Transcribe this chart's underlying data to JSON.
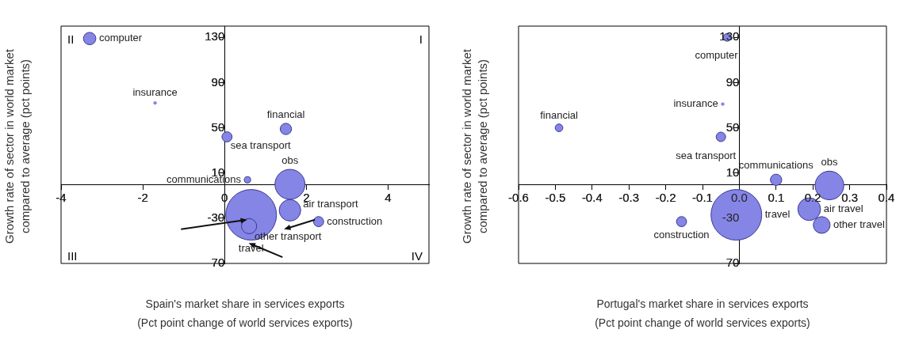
{
  "chart_data": [
    {
      "type": "bubble",
      "xlabel": "Spain's market share in services exports (Pct point change of world services exports)",
      "ylabel": "Growth rate of sector in world market compared to average (pct points)",
      "xlim": [
        -4,
        5
      ],
      "xticks": [
        -4,
        -2,
        0,
        2,
        4
      ],
      "ylim": [
        -70,
        140
      ],
      "yticks": [
        130,
        90,
        50,
        10,
        -30,
        {
          "value": -70,
          "label": "70"
        }
      ],
      "grid": false,
      "legend": false,
      "annotations": [
        "II",
        "I",
        "III",
        "IV"
      ],
      "series": [
        {
          "name": "computer",
          "color": "#8585e6",
          "x": [
            -3.3
          ],
          "values": [
            129
          ],
          "sizes": [
            0.06
          ]
        },
        {
          "name": "insurance",
          "color": "#8585e6",
          "x": [
            -1.7
          ],
          "values": [
            72
          ],
          "sizes": [
            0.003
          ]
        },
        {
          "name": "financial",
          "color": "#8585e6",
          "x": [
            1.5
          ],
          "values": [
            49
          ],
          "sizes": [
            0.05
          ]
        },
        {
          "name": "sea transport",
          "color": "#8585e6",
          "x": [
            0.06
          ],
          "values": [
            42
          ],
          "sizes": [
            0.04
          ]
        },
        {
          "name": "communications",
          "color": "#8585e6",
          "x": [
            0.56
          ],
          "values": [
            4
          ],
          "sizes": [
            0.016
          ]
        },
        {
          "name": "obs",
          "color": "#8585e6",
          "x": [
            1.6
          ],
          "values": [
            0
          ],
          "sizes": [
            0.35
          ]
        },
        {
          "name": "air transport",
          "color": "#8585e6",
          "x": [
            1.6
          ],
          "values": [
            -23
          ],
          "sizes": [
            0.18
          ]
        },
        {
          "name": "construction",
          "color": "#8585e6",
          "x": [
            2.3
          ],
          "values": [
            -33
          ],
          "sizes": [
            0.04
          ]
        },
        {
          "name": "travel",
          "color": "#8585e6",
          "x": [
            0.65
          ],
          "values": [
            -27
          ],
          "sizes": [
            1
          ]
        },
        {
          "name": "other transport",
          "color": "#8585e6",
          "x": [
            0.6
          ],
          "values": [
            -37
          ],
          "sizes": [
            0.09
          ]
        }
      ]
    },
    {
      "type": "bubble",
      "xlabel": "Portugal's market share in services exports (Pct point change of world services exports)",
      "ylabel": "Growth rate of sector in world market compared to average (pct points)",
      "xlim": [
        -0.6,
        0.4
      ],
      "xticks": [
        -0.6,
        -0.5,
        -0.4,
        -0.3,
        -0.2,
        -0.1,
        {
          "value": 0,
          "label": "0.0"
        },
        0.1,
        0.2,
        0.3,
        0.4
      ],
      "ylim": [
        -70,
        140
      ],
      "yticks": [
        130,
        90,
        50,
        10,
        -30,
        {
          "value": -70,
          "label": "70"
        }
      ],
      "grid": false,
      "legend": false,
      "series": [
        {
          "name": "computer",
          "color": "#8585e6",
          "x": [
            -0.033
          ],
          "values": [
            130
          ],
          "sizes": [
            0.023
          ]
        },
        {
          "name": "insurance",
          "color": "#8585e6",
          "x": [
            -0.045
          ],
          "values": [
            71
          ],
          "sizes": [
            0.003
          ]
        },
        {
          "name": "financial",
          "color": "#8585e6",
          "x": [
            -0.49
          ],
          "values": [
            50
          ],
          "sizes": [
            0.023
          ]
        },
        {
          "name": "sea transport",
          "color": "#8585e6",
          "x": [
            -0.05
          ],
          "values": [
            42
          ],
          "sizes": [
            0.035
          ]
        },
        {
          "name": "communications",
          "color": "#8585e6",
          "x": [
            0.1
          ],
          "values": [
            4
          ],
          "sizes": [
            0.05
          ]
        },
        {
          "name": "obs",
          "color": "#8585e6",
          "x": [
            0.245
          ],
          "values": [
            -1
          ],
          "sizes": [
            0.32
          ]
        },
        {
          "name": "air travel",
          "color": "#8585e6",
          "x": [
            0.19
          ],
          "values": [
            -22
          ],
          "sizes": [
            0.2
          ]
        },
        {
          "name": "other travel",
          "color": "#8585e6",
          "x": [
            0.224
          ],
          "values": [
            -36
          ],
          "sizes": [
            0.11
          ]
        },
        {
          "name": "construction",
          "color": "#8585e6",
          "x": [
            -0.157
          ],
          "values": [
            -33
          ],
          "sizes": [
            0.04
          ]
        },
        {
          "name": "travel",
          "color": "#8585e6",
          "x": [
            -0.008
          ],
          "values": [
            -27
          ],
          "sizes": [
            1
          ]
        }
      ]
    }
  ]
}
